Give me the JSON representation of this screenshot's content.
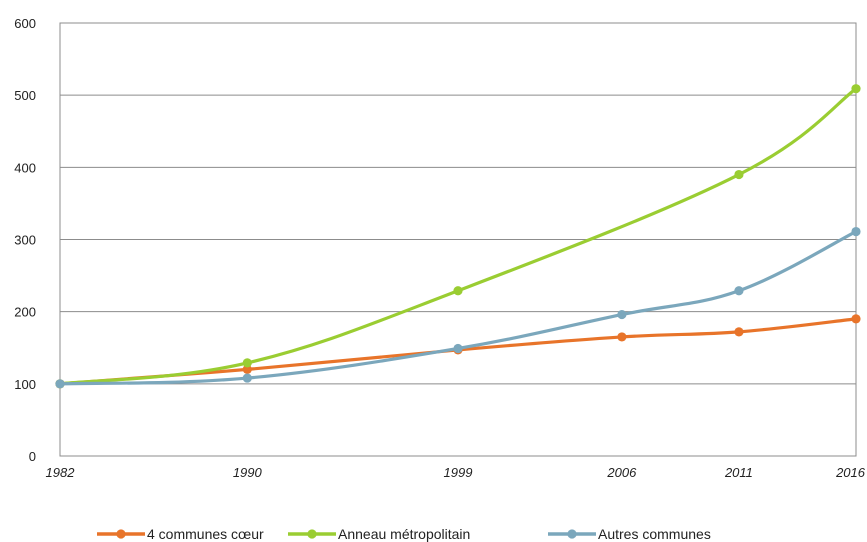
{
  "chart_data": {
    "type": "line",
    "x": [
      "1982",
      "1990",
      "1999",
      "2006",
      "2011",
      "2016"
    ],
    "x_numeric": [
      1982,
      1990,
      1999,
      2006,
      2011,
      2016
    ],
    "ylim": [
      0,
      600
    ],
    "y_ticks": [
      "0",
      "100",
      "200",
      "300",
      "400",
      "500",
      "600"
    ],
    "grid": true,
    "legend_position": "bottom",
    "series": [
      {
        "name": "4 communes cœur",
        "color": "#E8742A",
        "values": [
          100,
          120,
          147,
          165,
          172,
          190
        ]
      },
      {
        "name": "Anneau métropolitain",
        "color": "#9ACD32",
        "values": [
          100,
          129,
          229,
          null,
          390,
          509
        ]
      },
      {
        "name": "Autres communes",
        "color": "#7BA7BC",
        "values": [
          100,
          108,
          149,
          196,
          229,
          311
        ]
      }
    ]
  }
}
